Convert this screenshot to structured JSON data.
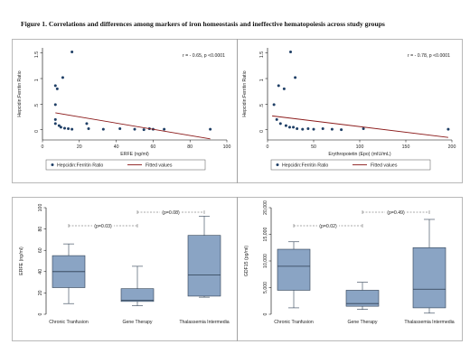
{
  "figure": {
    "title": "Figure 1. Correlations and differences among markers of iron homeostasis and ineffective hematopoiesis across study groups"
  },
  "colors": {
    "background": "#ffffff",
    "plot_border": "#000000",
    "scatter_point": "#1f3f66",
    "fit_line": "#8b1a1a",
    "box_fill": "#8aa4c4",
    "box_stroke": "#2d3e52",
    "sig_line": "#555555"
  },
  "chart_data": [
    {
      "id": "scatter_erfe",
      "type": "scatter",
      "xlabel": "ERFE (ng/ml)",
      "ylabel": "Hepcidin:Ferritin Ratio",
      "annotation": "r = - 0.65, p <0.0001",
      "xlim": [
        0,
        100
      ],
      "ylim": [
        -0.2,
        1.6
      ],
      "xticks": [
        0,
        20,
        40,
        60,
        80,
        100
      ],
      "yticks": [
        0,
        0.5,
        1,
        1.5
      ],
      "xtick_labels": [
        "0",
        "20",
        "40",
        "60",
        "80",
        "100"
      ],
      "ytick_labels": [
        "0",
        ".5",
        "1",
        "1.5"
      ],
      "legend": {
        "placement": "bottom",
        "entries": [
          "Hepcidin:Ferritin Ratio",
          "Fitted values"
        ]
      },
      "series": [
        {
          "name": "Hepcidin:Ferritin Ratio",
          "kind": "points",
          "points": [
            [
              16,
              1.52
            ],
            [
              11,
              1.02
            ],
            [
              7,
              0.86
            ],
            [
              8,
              0.8
            ],
            [
              7,
              0.49
            ],
            [
              7,
              0.2
            ],
            [
              7,
              0.12
            ],
            [
              9,
              0.08
            ],
            [
              10,
              0.05
            ],
            [
              12,
              0.03
            ],
            [
              14,
              0.02
            ],
            [
              16,
              0.01
            ],
            [
              24,
              0.12
            ],
            [
              25,
              0.02
            ],
            [
              33,
              0.01
            ],
            [
              42,
              0.02
            ],
            [
              50,
              0.01
            ],
            [
              55,
              0.0
            ],
            [
              58,
              0.02
            ],
            [
              60,
              0.01
            ],
            [
              66,
              0.01
            ],
            [
              91,
              0.01
            ]
          ]
        },
        {
          "name": "Fitted values",
          "kind": "line",
          "points": [
            [
              7,
              0.33
            ],
            [
              91,
              -0.18
            ]
          ]
        }
      ]
    },
    {
      "id": "scatter_epo",
      "type": "scatter",
      "xlabel": "Erythropoietin (Epo) (mIU/mL)",
      "ylabel": "Hepcidin:Ferritin Ratio",
      "annotation": "r = - 0.78, p <0.0001",
      "xlim": [
        0,
        200
      ],
      "ylim": [
        -0.2,
        1.6
      ],
      "xticks": [
        0,
        50,
        100,
        150,
        200
      ],
      "yticks": [
        0,
        0.5,
        1,
        1.5
      ],
      "xtick_labels": [
        "0",
        "50",
        "100",
        "150",
        "200"
      ],
      "ytick_labels": [
        "0",
        ".5",
        "1",
        "1.5"
      ],
      "legend": {
        "placement": "bottom",
        "entries": [
          "Hepcidin:Ferritin Ratio",
          "Fitted values"
        ]
      },
      "series": [
        {
          "name": "Hepcidin:Ferritin Ratio",
          "kind": "points",
          "points": [
            [
              25,
              1.52
            ],
            [
              30,
              1.02
            ],
            [
              12,
              0.86
            ],
            [
              18,
              0.8
            ],
            [
              7,
              0.49
            ],
            [
              10,
              0.2
            ],
            [
              14,
              0.12
            ],
            [
              20,
              0.08
            ],
            [
              24,
              0.05
            ],
            [
              28,
              0.05
            ],
            [
              32,
              0.02
            ],
            [
              38,
              0.01
            ],
            [
              44,
              0.02
            ],
            [
              50,
              0.01
            ],
            [
              60,
              0.02
            ],
            [
              70,
              0.01
            ],
            [
              80,
              0.0
            ],
            [
              104,
              0.02
            ],
            [
              196,
              0.01
            ]
          ]
        },
        {
          "name": "Fitted values",
          "kind": "line",
          "points": [
            [
              5,
              0.27
            ],
            [
              196,
              -0.15
            ]
          ]
        }
      ]
    },
    {
      "id": "box_erfe",
      "type": "box",
      "ylabel": "ERFE (ng/ml)",
      "ylim": [
        0,
        100
      ],
      "yticks": [
        0,
        20,
        40,
        60,
        80,
        100
      ],
      "ytick_labels": [
        "0",
        "20",
        "40",
        "60",
        "80",
        "100"
      ],
      "categories": [
        "Chronic Tranfusion",
        "Gene Therapy",
        "Thalassemia Intermedia"
      ],
      "boxes": [
        {
          "min": 10,
          "q1": 25,
          "median": 40,
          "q3": 55,
          "max": 66
        },
        {
          "min": 8,
          "q1": 12,
          "median": 13,
          "q3": 24,
          "max": 45
        },
        {
          "min": 16,
          "q1": 17,
          "median": 37,
          "q3": 74,
          "max": 92
        }
      ],
      "comparisons": [
        {
          "from": 0,
          "to": 1,
          "label": "(p=0.03)"
        },
        {
          "from": 1,
          "to": 2,
          "label": "(p=0.08)"
        }
      ]
    },
    {
      "id": "box_gdf15",
      "type": "box",
      "ylabel": "GDF15 (pg/ml)",
      "ylim": [
        0,
        20000
      ],
      "yticks": [
        0,
        5000,
        10000,
        15000,
        20000
      ],
      "ytick_labels": [
        "0",
        "5,000",
        "10,000",
        "15,000",
        "20,000"
      ],
      "categories": [
        "Chronic Tranfusion",
        "Gene Therapy",
        "Thalassemia Intermedia"
      ],
      "boxes": [
        {
          "min": 1200,
          "q1": 4500,
          "median": 9000,
          "q3": 12200,
          "max": 13600
        },
        {
          "min": 900,
          "q1": 1500,
          "median": 2000,
          "q3": 4500,
          "max": 6000
        },
        {
          "min": 200,
          "q1": 1200,
          "median": 4700,
          "q3": 12500,
          "max": 17800
        }
      ],
      "comparisons": [
        {
          "from": 0,
          "to": 1,
          "label": "(p=0.02)"
        },
        {
          "from": 1,
          "to": 2,
          "label": "(p=0.49)"
        }
      ]
    }
  ]
}
